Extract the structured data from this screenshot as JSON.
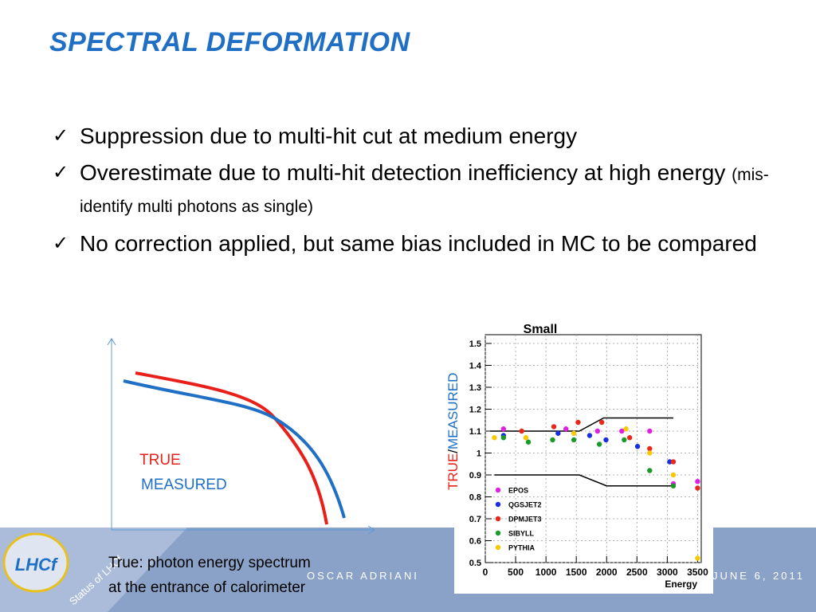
{
  "header": {
    "title": "SPECTRAL DEFORMATION"
  },
  "bullets": [
    {
      "text": "Suppression due to multi-hit cut at medium energy"
    },
    {
      "text": "Overestimate due to multi-hit detection inefficiency at high energy",
      "note": "(mis-identify multi photons as single)"
    },
    {
      "text": "No correction applied, but same bias included in MC to be compared"
    }
  ],
  "sketch": {
    "labels": [
      "TRUE",
      "MEASURED"
    ],
    "caption": [
      "True: photon energy spectrum",
      "at the entrance of calorimeter"
    ]
  },
  "footer": {
    "author": "OSCAR ADRIANI",
    "date": "JUNE 6, 2011",
    "talk": "Status of LHCf",
    "logo": "LHCf"
  },
  "chart_data": {
    "type": "scatter",
    "title": "Small",
    "xlabel": "Energy",
    "ylabel": [
      "TRUE",
      "/",
      "MEASURED"
    ],
    "xlim": [
      0,
      3560
    ],
    "xticks": [
      0,
      500,
      1000,
      1500,
      2000,
      2500,
      3000,
      3500
    ],
    "ylim": [
      0.5,
      1.54
    ],
    "yticks": [
      0.5,
      0.6,
      0.7,
      0.8,
      0.9,
      1,
      1.1,
      1.2,
      1.3,
      1.4,
      1.5
    ],
    "grid": true,
    "series": [
      {
        "name": "EPOS",
        "color": "#e020e0",
        "x": [
          300,
          1330,
          1850,
          2250,
          2710,
          3100,
          3500
        ],
        "values": [
          1.11,
          1.11,
          1.1,
          1.1,
          1.1,
          0.86,
          0.87
        ]
      },
      {
        "name": "QGSJET2",
        "color": "#1a2ee0",
        "x": [
          300,
          1200,
          1720,
          1990,
          2510,
          3040
        ],
        "values": [
          1.08,
          1.09,
          1.08,
          1.06,
          1.03,
          0.96
        ]
      },
      {
        "name": "DPMJET3",
        "color": "#e8281a",
        "x": [
          600,
          1130,
          1530,
          1920,
          2380,
          2710,
          3100,
          3500
        ],
        "values": [
          1.1,
          1.12,
          1.14,
          1.14,
          1.07,
          1.02,
          0.96,
          0.84
        ]
      },
      {
        "name": "SIBYLL",
        "color": "#1a9a2a",
        "x": [
          300,
          710,
          1110,
          1460,
          1880,
          2290,
          2710,
          3100
        ],
        "values": [
          1.07,
          1.05,
          1.06,
          1.06,
          1.04,
          1.06,
          0.92,
          0.85
        ]
      },
      {
        "name": "PYTHIA",
        "color": "#f8c800",
        "x": [
          150,
          670,
          1460,
          2320,
          2710,
          3100,
          3500
        ],
        "values": [
          1.07,
          1.07,
          1.09,
          1.11,
          1.0,
          0.9,
          0.52
        ]
      }
    ],
    "bands": [
      {
        "color": "#000000",
        "x": [
          80,
          1550,
          1950,
          3100
        ],
        "values": [
          1.1,
          1.1,
          1.16,
          1.16
        ]
      },
      {
        "color": "#000000",
        "x": [
          150,
          1550,
          2000,
          3100
        ],
        "values": [
          0.9,
          0.9,
          0.85,
          0.85
        ]
      }
    ]
  }
}
